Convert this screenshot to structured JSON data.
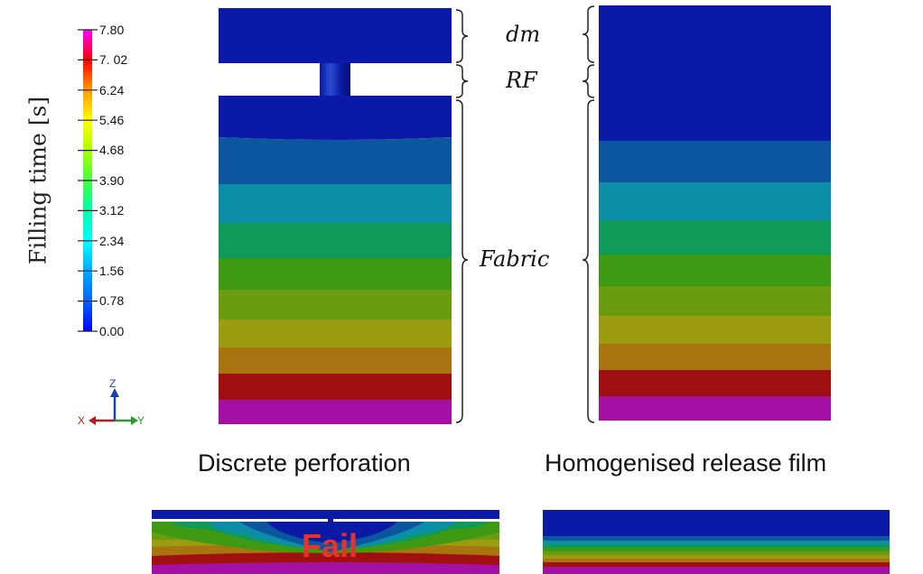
{
  "legend": {
    "title": "Filling time [s]",
    "ticks": [
      "7.80",
      "7. 02",
      "6.24",
      "5.46",
      "4.68",
      "3.90",
      "3.12",
      "2.34",
      "1.56",
      "0.78",
      "0.00"
    ],
    "colors": [
      "#ff00ff",
      "#ff0000",
      "#ffaa00",
      "#ffff00",
      "#aaff00",
      "#00ff55",
      "#00ffaa",
      "#00ffff",
      "#00aaff",
      "#0000ff"
    ]
  },
  "axes_triad": {
    "x": "X",
    "y": "Y",
    "z": "Z"
  },
  "labels": {
    "dm": "dm",
    "rf": "RF",
    "fabric": "Fabric"
  },
  "captions": {
    "left": "Discrete perforation",
    "right": "Homogenised release film"
  },
  "fail_label": "Fail",
  "band_colors": [
    "#0b1aa6",
    "#0c56a0",
    "#0b8ea6",
    "#0f9a5a",
    "#3d9a12",
    "#6a9c10",
    "#9c9c10",
    "#a87410",
    "#a01010",
    "#a410a4"
  ]
}
